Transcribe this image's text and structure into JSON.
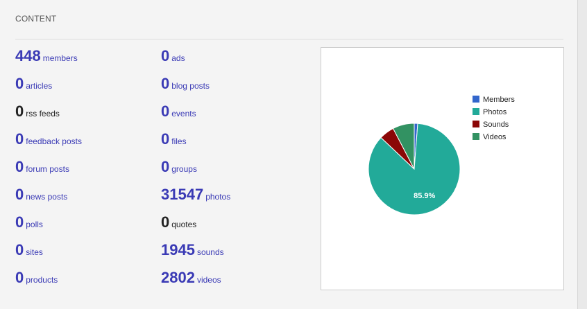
{
  "panel": {
    "title": "CONTENT"
  },
  "stats": [
    {
      "value": "448",
      "label": "members",
      "dark": false
    },
    {
      "value": "0",
      "label": "articles",
      "dark": false
    },
    {
      "value": "0",
      "label": "rss feeds",
      "dark": true
    },
    {
      "value": "0",
      "label": "feedback posts",
      "dark": false
    },
    {
      "value": "0",
      "label": "forum posts",
      "dark": false
    },
    {
      "value": "0",
      "label": "news posts",
      "dark": false
    },
    {
      "value": "0",
      "label": "polls",
      "dark": false
    },
    {
      "value": "0",
      "label": "sites",
      "dark": false
    },
    {
      "value": "0",
      "label": "products",
      "dark": false
    },
    {
      "value": "0",
      "label": "ads",
      "dark": false
    },
    {
      "value": "0",
      "label": "blog posts",
      "dark": false
    },
    {
      "value": "0",
      "label": "events",
      "dark": false
    },
    {
      "value": "0",
      "label": "files",
      "dark": false
    },
    {
      "value": "0",
      "label": "groups",
      "dark": false
    },
    {
      "value": "31547",
      "label": "photos",
      "dark": false
    },
    {
      "value": "0",
      "label": "quotes",
      "dark": true
    },
    {
      "value": "1945",
      "label": "sounds",
      "dark": false
    },
    {
      "value": "2802",
      "label": "videos",
      "dark": false
    }
  ],
  "colors": {
    "link": "#3a3ab5",
    "dark_text": "#222222"
  },
  "chart_data": {
    "type": "pie",
    "title": "",
    "categories": [
      "Members",
      "Photos",
      "Sounds",
      "Videos"
    ],
    "values": [
      448,
      31547,
      1945,
      2802
    ],
    "colors": [
      "#3366cc",
      "#22aa99",
      "#8b0707",
      "#329262"
    ],
    "slice_labels": [
      "",
      "85.9%",
      "",
      ""
    ],
    "legend": "right"
  }
}
